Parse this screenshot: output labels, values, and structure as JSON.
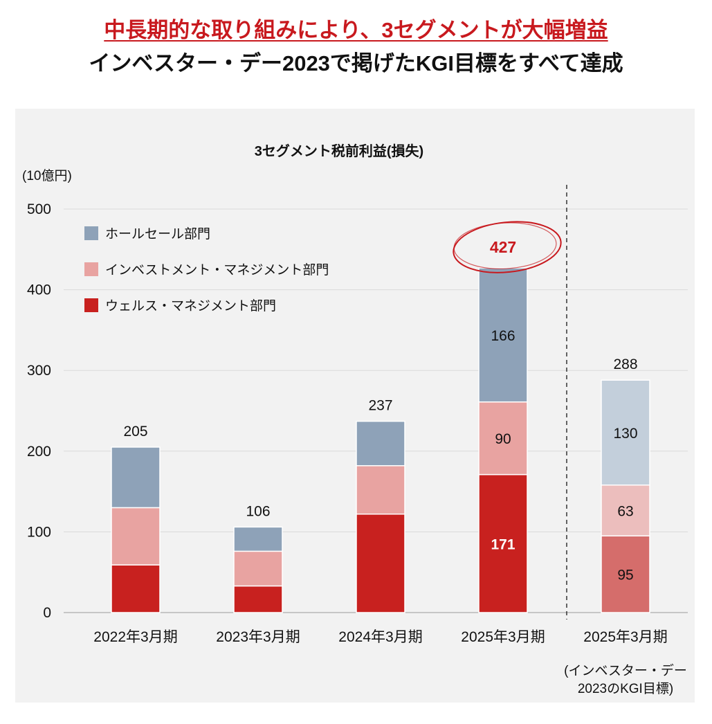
{
  "headline": {
    "line1": "中長期的な取り組みにより、3セグメントが大幅増益",
    "line2": "インベスター・デー2023で掲げたKGI目標をすべて達成"
  },
  "chart_data": {
    "type": "bar",
    "stacked": true,
    "title": "3セグメント税前利益(損失)",
    "unit_label": "(10億円)",
    "ylim": [
      0,
      500
    ],
    "yticks": [
      0,
      100,
      200,
      300,
      400,
      500
    ],
    "grid": true,
    "legend_position": "top-left",
    "categories": [
      "2022年3月期",
      "2023年3月期",
      "2024年3月期",
      "2025年3月期",
      "2025年3月期"
    ],
    "target_category_note": [
      "(インベスター・デー",
      "2023のKGI目標)"
    ],
    "series": [
      {
        "name": "ウェルス・マネジメント部門",
        "color": "#c8211f",
        "target_color": "#d56d6b",
        "values": [
          59,
          33,
          122,
          171,
          95
        ],
        "labels": [
          "",
          "",
          "",
          "171",
          "95"
        ]
      },
      {
        "name": "インベストメント・マネジメント部門",
        "color": "#e8a3a1",
        "target_color": "#ecbebd",
        "values": [
          71,
          43,
          60,
          90,
          63
        ],
        "labels": [
          "",
          "",
          "",
          "90",
          "63"
        ]
      },
      {
        "name": "ホールセール部門",
        "color": "#8ea2b8",
        "target_color": "#c3cfdb",
        "values": [
          75,
          30,
          55,
          166,
          130
        ],
        "labels": [
          "",
          "",
          "",
          "166",
          "130"
        ]
      }
    ],
    "totals": [
      "205",
      "106",
      "237",
      "427",
      "288"
    ],
    "highlight": {
      "category_index": 3,
      "total": "427",
      "color": "#c8191e"
    }
  }
}
